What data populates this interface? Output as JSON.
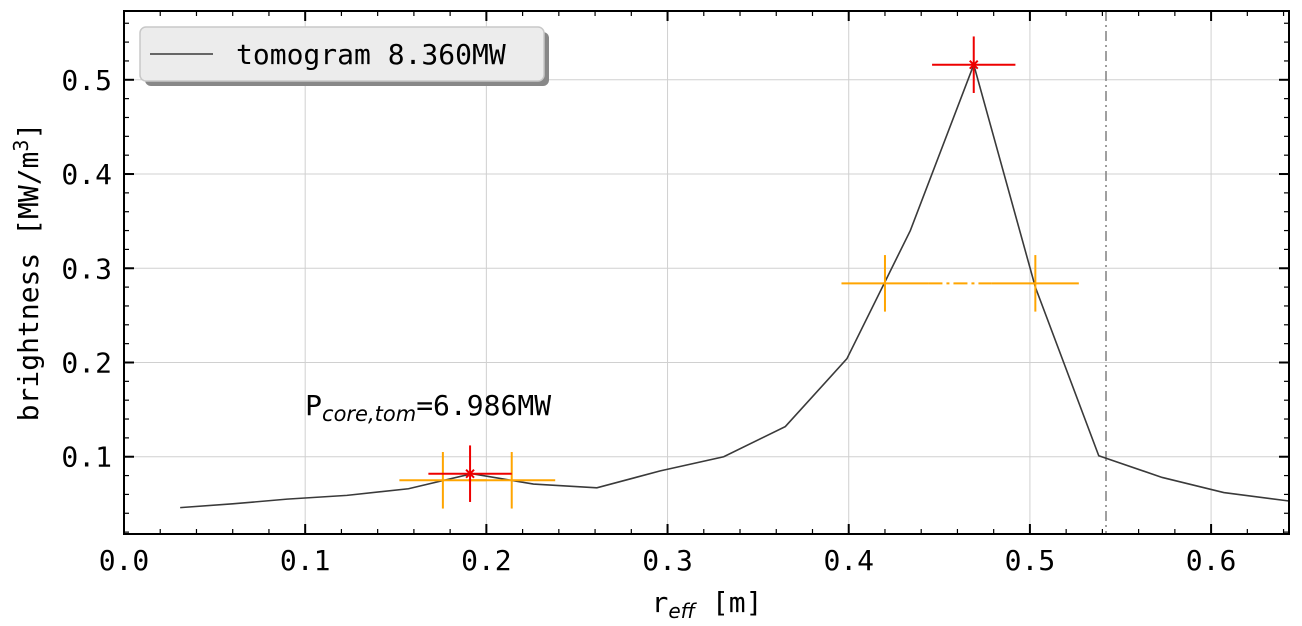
{
  "chart_data": {
    "type": "line",
    "title": "",
    "xlabel": {
      "main": "r",
      "sub": "eff",
      "unit": " [m]"
    },
    "ylabel": {
      "main": "brightness [MW/m",
      "sup": "3",
      "end": "]"
    },
    "xlim": [
      0.0,
      0.643
    ],
    "ylim": [
      0.018,
      0.573
    ],
    "xticks": [
      0.0,
      0.1,
      0.2,
      0.3,
      0.4,
      0.5,
      0.6
    ],
    "xtick_labels": [
      "0.0",
      "0.1",
      "0.2",
      "0.3",
      "0.4",
      "0.5",
      "0.6"
    ],
    "yticks": [
      0.1,
      0.2,
      0.3,
      0.4,
      0.5
    ],
    "ytick_labels": [
      "0.1",
      "0.2",
      "0.3",
      "0.4",
      "0.5"
    ],
    "grid": true,
    "legend": {
      "placement": "top-left",
      "entries": [
        "tomogram 8.360MW"
      ]
    },
    "series": [
      {
        "name": "tomogram 8.360MW",
        "color": "#3a3a3a",
        "x": [
          0.031,
          0.06,
          0.09,
          0.123,
          0.157,
          0.192,
          0.226,
          0.261,
          0.296,
          0.331,
          0.365,
          0.399,
          0.434,
          0.469,
          0.503,
          0.538,
          0.573,
          0.607,
          0.643
        ],
        "y": [
          0.046,
          0.05,
          0.055,
          0.059,
          0.066,
          0.082,
          0.071,
          0.067,
          0.085,
          0.1,
          0.132,
          0.204,
          0.34,
          0.516,
          0.28,
          0.101,
          0.078,
          0.062,
          0.053
        ]
      }
    ],
    "markers_red": [
      {
        "x": 0.191,
        "y": 0.082,
        "xerr": 0.023,
        "yerr": 0.03
      },
      {
        "x": 0.469,
        "y": 0.516,
        "xerr": 0.023,
        "yerr": 0.03
      }
    ],
    "markers_orange": [
      {
        "x": 0.176,
        "y": 0.075,
        "xerr": 0.024,
        "yerr": 0.03
      },
      {
        "x": 0.214,
        "y": 0.075,
        "xerr": 0.024,
        "yerr": 0.03
      },
      {
        "x": 0.42,
        "y": 0.284,
        "xerr": 0.024,
        "yerr": 0.03
      },
      {
        "x": 0.503,
        "y": 0.284,
        "xerr": 0.024,
        "yerr": 0.03
      }
    ],
    "orange_dashdot": {
      "x": [
        0.444,
        0.479
      ],
      "y": 0.284
    },
    "vline": {
      "x": 0.542,
      "color": "#888888"
    },
    "annotation": {
      "main": "P",
      "sub": "core,tom",
      "value": "=6.986MW",
      "x": 0.1,
      "y": 0.155
    },
    "colors": {
      "red": "#ee0000",
      "orange": "#ffa500",
      "grid": "#d0d0d0",
      "line": "#3a3a3a"
    }
  }
}
